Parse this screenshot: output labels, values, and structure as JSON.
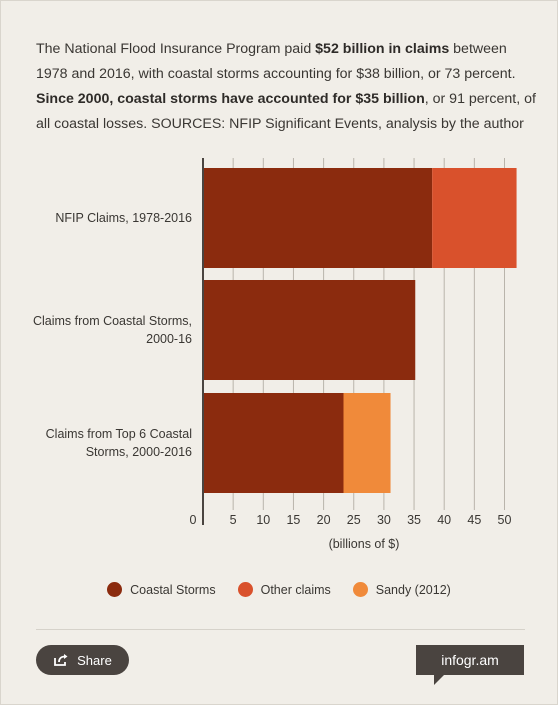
{
  "description": {
    "part1": "The National Flood Insurance Program paid ",
    "bold1": "$52 billion in claims",
    "part2": " between 1978 and 2016, with coastal storms accounting for $38 billion, or 73 percent. ",
    "bold2": "Since 2000, coastal storms have accounted for $35 billion",
    "part3": ", or 91 percent, of all coastal losses. SOURCES: NFIP Significant Events, analysis by the author"
  },
  "chart_data": {
    "type": "bar",
    "orientation": "horizontal",
    "stacked": true,
    "categories": [
      "NFIP Claims, 1978-2016",
      "Claims from Coastal Storms, 2000-16",
      "Claims from Top 6 Coastal Storms, 2000-2016"
    ],
    "series": [
      {
        "name": "Coastal Storms",
        "color": "#8b2b0e",
        "values": [
          38,
          35.2,
          23.3
        ]
      },
      {
        "name": "Other claims",
        "color": "#d9512c",
        "values": [
          14,
          0,
          0
        ]
      },
      {
        "name": "Sandy (2012)",
        "color": "#f08a3a",
        "values": [
          0,
          0,
          7.8
        ]
      }
    ],
    "xticks": [
      0,
      5,
      10,
      15,
      20,
      25,
      30,
      35,
      40,
      45,
      50
    ],
    "xlim": [
      0,
      52
    ],
    "xlabel": "(billions of $)",
    "grid": true,
    "legend_position": "bottom"
  },
  "footer": {
    "share_label": "Share",
    "brand": "infogr.am"
  }
}
